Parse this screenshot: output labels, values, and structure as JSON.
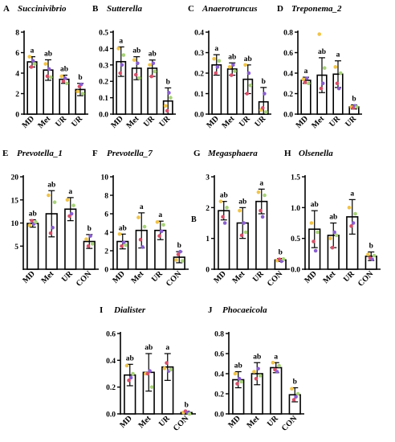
{
  "point_colors": [
    "#f0c44a",
    "#d8506a",
    "#8a5fd0",
    "#a8d27a"
  ],
  "chart_data": [
    {
      "letter": "A",
      "title": "Succinivibrio",
      "type": "bar",
      "categories": [
        "MD",
        "Met",
        "UR",
        "UR"
      ],
      "yticks": [
        0,
        2,
        4,
        6,
        8
      ],
      "ylim": [
        0,
        8
      ],
      "values": [
        5.1,
        4.3,
        3.4,
        2.4
      ],
      "errors": [
        0.5,
        1.0,
        0.4,
        0.6
      ],
      "sig": [
        "a",
        "ab",
        "ab",
        "b"
      ],
      "points": [
        [
          5.6,
          4.6,
          5.2,
          4.9
        ],
        [
          4.9,
          3.7,
          4.4,
          3.6
        ],
        [
          3.7,
          3.2,
          3.5,
          3.0
        ],
        [
          2.2,
          2.7,
          2.9,
          2.0
        ]
      ]
    },
    {
      "letter": "B",
      "title": "Sutterella",
      "type": "bar",
      "categories": [
        "MD",
        "Met",
        "UR",
        "UR"
      ],
      "yticks": [
        0.0,
        0.1,
        0.2,
        0.3,
        0.4,
        0.5
      ],
      "ylim": [
        0,
        0.5
      ],
      "values": [
        0.32,
        0.28,
        0.28,
        0.08
      ],
      "errors": [
        0.09,
        0.07,
        0.05,
        0.08
      ],
      "sig": [
        "a",
        "ab",
        "ab",
        "b"
      ],
      "points": [
        [
          0.4,
          0.25,
          0.3,
          0.36
        ],
        [
          0.33,
          0.24,
          0.31,
          0.22
        ],
        [
          0.3,
          0.23,
          0.31,
          0.26
        ],
        [
          0.05,
          0.02,
          0.13,
          0.1
        ]
      ]
    },
    {
      "letter": "C",
      "title": "Anaerotruncus",
      "type": "bar",
      "categories": [
        "MD",
        "Met",
        "UR",
        "UR"
      ],
      "yticks": [
        0.0,
        0.1,
        0.2,
        0.3,
        0.4
      ],
      "ylim": [
        0,
        0.4
      ],
      "values": [
        0.24,
        0.22,
        0.17,
        0.06
      ],
      "errors": [
        0.05,
        0.03,
        0.07,
        0.07
      ],
      "sig": [
        "a",
        "ab",
        "ab",
        "b"
      ],
      "points": [
        [
          0.27,
          0.2,
          0.23,
          0.26
        ],
        [
          0.23,
          0.19,
          0.24,
          0.21
        ],
        [
          0.24,
          0.1,
          0.2,
          0.14
        ],
        [
          0.02,
          0.03,
          0.1,
          0.01
        ]
      ]
    },
    {
      "letter": "D",
      "title": "Treponema_2",
      "type": "bar",
      "categories": [
        "MD",
        "Met",
        "UR",
        "UR"
      ],
      "yticks": [
        0.0,
        0.2,
        0.4,
        0.6,
        0.8
      ],
      "ylim": [
        0,
        0.8
      ],
      "values": [
        0.33,
        0.38,
        0.39,
        0.07
      ],
      "errors": [
        0.03,
        0.17,
        0.13,
        0.02
      ],
      "sig": [
        "a",
        "ab",
        "a",
        "b"
      ],
      "points": [
        [
          0.34,
          0.31,
          0.35,
          0.3
        ],
        [
          0.78,
          0.25,
          0.3,
          0.45
        ],
        [
          0.46,
          0.3,
          0.25,
          0.4
        ],
        [
          0.07,
          0.06,
          0.08,
          0.07
        ]
      ]
    },
    {
      "letter": "E",
      "title": "Prevotella_1",
      "type": "bar",
      "categories": [
        "MD",
        "Met",
        "UR",
        "CON"
      ],
      "yticks": [
        5,
        10,
        15,
        20
      ],
      "ylim": [
        0,
        20
      ],
      "values": [
        9.9,
        12.0,
        13.0,
        6.0
      ],
      "errors": [
        0.8,
        5.0,
        2.5,
        1.5
      ],
      "sig": [
        "ab",
        "ab",
        "a",
        "b"
      ],
      "points": [
        [
          9.5,
          10.5,
          9.8,
          10.2
        ],
        [
          16.0,
          7.8,
          9.0,
          14.5
        ],
        [
          15.0,
          11.5,
          12.0,
          13.8
        ],
        [
          6.5,
          5.0,
          7.2,
          5.5
        ]
      ]
    },
    {
      "letter": "F",
      "title": "Prevotella_7",
      "type": "bar",
      "categories": [
        "MD",
        "Met",
        "UR",
        "CON"
      ],
      "yticks": [
        0,
        2,
        4,
        6,
        8,
        10
      ],
      "ylim": [
        0,
        10
      ],
      "values": [
        3.0,
        4.2,
        4.2,
        1.3
      ],
      "errors": [
        0.8,
        1.9,
        1.0,
        0.6
      ],
      "sig": [
        "ab",
        "a",
        "a",
        "b"
      ],
      "points": [
        [
          3.8,
          2.5,
          2.9,
          2.6
        ],
        [
          5.6,
          3.2,
          2.4,
          4.6
        ],
        [
          5.1,
          3.6,
          4.1,
          4.8
        ],
        [
          1.0,
          1.6,
          1.9,
          0.9
        ]
      ]
    },
    {
      "letter": "G",
      "title": "Megasphaera",
      "type": "bar",
      "categories": [
        "MD",
        "Met",
        "UR",
        "CON"
      ],
      "yticks": [
        0,
        1,
        2,
        3
      ],
      "ylim": [
        0,
        3
      ],
      "values": [
        1.9,
        1.5,
        2.2,
        0.3
      ],
      "errors": [
        0.3,
        0.5,
        0.4,
        0.05
      ],
      "sig": [
        "ab",
        "ab",
        "a",
        "b"
      ],
      "points": [
        [
          2.2,
          1.7,
          1.5,
          2.0
        ],
        [
          1.9,
          1.1,
          1.5,
          1.2
        ],
        [
          2.5,
          1.9,
          1.7,
          2.4
        ],
        [
          0.28,
          0.32,
          0.26,
          0.33
        ]
      ]
    },
    {
      "letter": "H",
      "title": "Olsenella",
      "type": "bar",
      "categories": [
        "MD",
        "Met",
        "UR",
        "CON"
      ],
      "yticks": [
        0.0,
        0.5,
        1.0,
        1.5
      ],
      "ylim": [
        0,
        1.5
      ],
      "values": [
        0.65,
        0.55,
        0.85,
        0.21
      ],
      "errors": [
        0.3,
        0.2,
        0.28,
        0.07
      ],
      "sig": [
        "ab",
        "ab",
        "a",
        "b"
      ],
      "points": [
        [
          0.75,
          0.45,
          0.3,
          0.6
        ],
        [
          0.5,
          0.35,
          0.6,
          0.55
        ],
        [
          1.0,
          0.7,
          0.75,
          0.9
        ],
        [
          0.24,
          0.18,
          0.16,
          0.22
        ]
      ]
    },
    {
      "letter": "I",
      "title": "Dialister",
      "type": "bar",
      "categories": [
        "MD",
        "Met",
        "UR",
        "CON"
      ],
      "yticks": [
        0.0,
        0.2,
        0.4,
        0.6
      ],
      "ylim": [
        0,
        0.6
      ],
      "values": [
        0.29,
        0.31,
        0.35,
        0.01
      ],
      "errors": [
        0.08,
        0.14,
        0.1,
        0.01
      ],
      "sig": [
        "ab",
        "ab",
        "a",
        "b"
      ],
      "points": [
        [
          0.36,
          0.25,
          0.27,
          0.3
        ],
        [
          0.3,
          0.3,
          0.32,
          0.2
        ],
        [
          0.34,
          0.38,
          0.32,
          0.33
        ],
        [
          0.01,
          0.02,
          0.01,
          0.0
        ]
      ]
    },
    {
      "letter": "J",
      "title": "Phocaeicola",
      "type": "bar",
      "categories": [
        "MD",
        "Met",
        "UR",
        "CON"
      ],
      "yticks": [
        0.0,
        0.2,
        0.4,
        0.6,
        0.8
      ],
      "ylim": [
        0,
        0.8
      ],
      "values": [
        0.34,
        0.4,
        0.46,
        0.19
      ],
      "errors": [
        0.08,
        0.11,
        0.05,
        0.07
      ],
      "sig": [
        "ab",
        "ab",
        "a",
        "b"
      ],
      "points": [
        [
          0.4,
          0.3,
          0.35,
          0.32
        ],
        [
          0.42,
          0.35,
          0.45,
          0.38
        ],
        [
          0.51,
          0.44,
          0.42,
          0.48
        ],
        [
          0.25,
          0.14,
          0.17,
          0.2
        ]
      ]
    }
  ],
  "stray_label": "B"
}
